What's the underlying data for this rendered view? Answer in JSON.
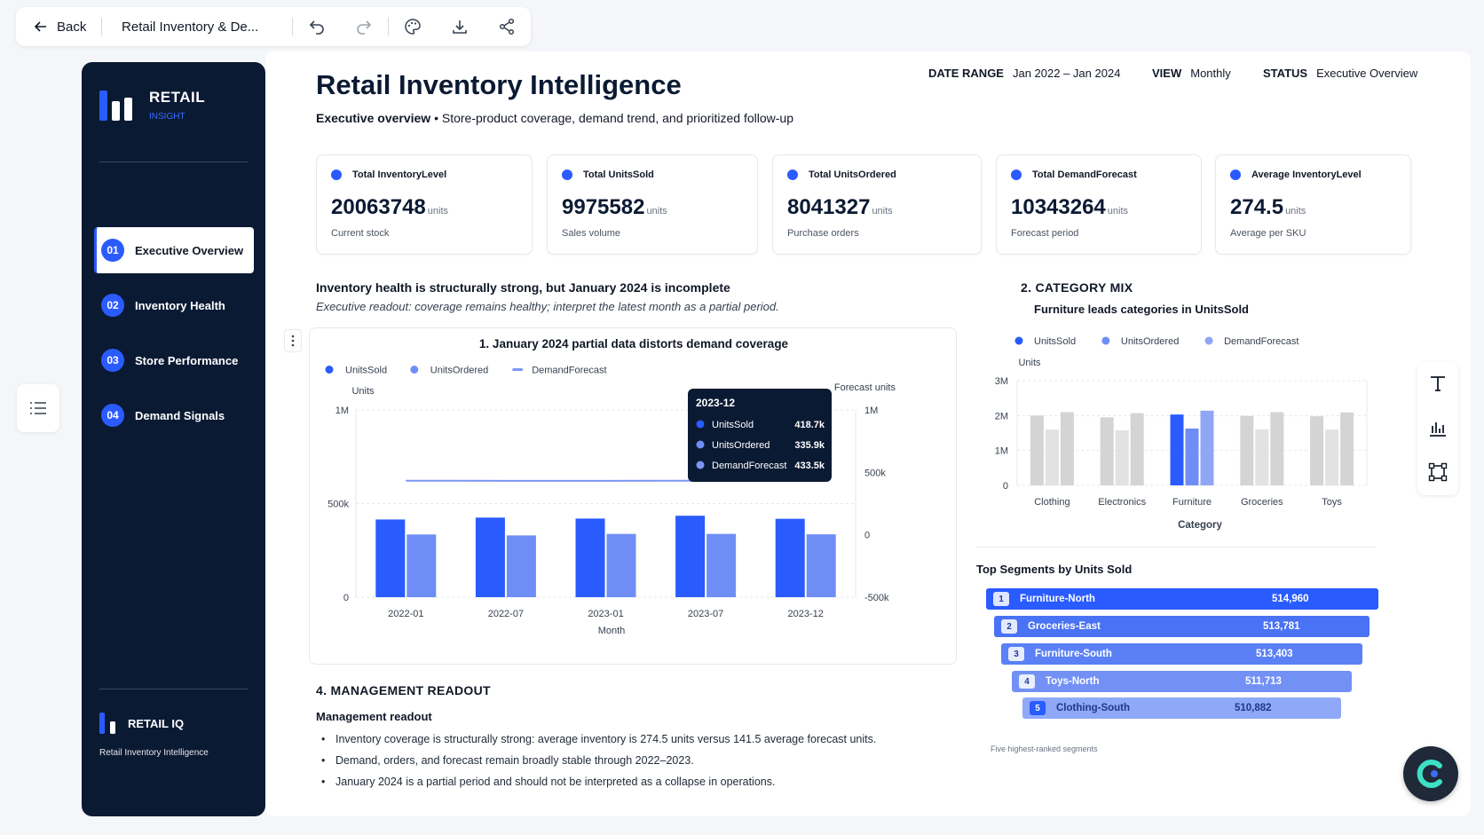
{
  "toolbar": {
    "back_label": "Back",
    "doc_title": "Retail Inventory & De..."
  },
  "sidebar": {
    "logo_title": "RETAIL",
    "logo_sub": "INSIGHT",
    "items": [
      {
        "num": "01",
        "label": "Executive Overview",
        "active": true
      },
      {
        "num": "02",
        "label": "Inventory Health",
        "active": false
      },
      {
        "num": "03",
        "label": "Store Performance",
        "active": false
      },
      {
        "num": "04",
        "label": "Demand Signals",
        "active": false
      }
    ],
    "footer_title": "RETAIL IQ",
    "footer_sub": "Retail Inventory Intelligence"
  },
  "header": {
    "title": "Retail Inventory Intelligence",
    "subtitle_bold": "Executive overview",
    "subtitle_rest": " • Store-product coverage, demand trend, and prioritized follow-up",
    "date_range_label": "DATE RANGE",
    "date_range_value": "Jan 2022 – Jan 2024",
    "view_label": "VIEW",
    "view_value": "Monthly",
    "status_label": "STATUS",
    "status_value": "Executive Overview"
  },
  "kpis": [
    {
      "label": "Total InventoryLevel",
      "value": "20063748",
      "unit": "units",
      "sub": "Current stock"
    },
    {
      "label": "Total UnitsSold",
      "value": "9975582",
      "unit": "units",
      "sub": "Sales volume"
    },
    {
      "label": "Total UnitsOrdered",
      "value": "8041327",
      "unit": "units",
      "sub": "Purchase orders"
    },
    {
      "label": "Total DemandForecast",
      "value": "10343264",
      "unit": "units",
      "sub": "Forecast period"
    },
    {
      "label": "Average InventoryLevel",
      "value": "274.5",
      "unit": "units",
      "sub": "Average per SKU"
    }
  ],
  "section1": {
    "title": "Inventory health is structurally strong, but January 2024 is incomplete",
    "subtitle": "Executive readout: coverage remains healthy; interpret the latest month as a partial period."
  },
  "section4": {
    "title": "4. MANAGEMENT READOUT",
    "subtitle": "Management readout",
    "bullets": [
      "Inventory coverage is structurally strong: average inventory is 274.5 units versus 141.5 average forecast units.",
      "Demand, orders, and forecast remain broadly stable through 2022–2023.",
      "January 2024 is a partial period and should not be interpreted as a collapse in operations."
    ]
  },
  "section2": {
    "title": "2. CATEGORY MIX",
    "subtitle": "Furniture leads categories in UnitsSold"
  },
  "segments": {
    "title": "Top Segments by Units Sold",
    "footnote": "Five highest-ranked segments",
    "items": [
      {
        "rank": "1",
        "name": "Furniture-North",
        "value": "514,960"
      },
      {
        "rank": "2",
        "name": "Groceries-East",
        "value": "513,781"
      },
      {
        "rank": "3",
        "name": "Furniture-South",
        "value": "513,403"
      },
      {
        "rank": "4",
        "name": "Toys-North",
        "value": "511,713"
      },
      {
        "rank": "5",
        "name": "Clothing-South",
        "value": "510,882"
      }
    ]
  },
  "chart_data": [
    {
      "type": "bar",
      "title": "1. January 2024 partial data distorts demand coverage",
      "xlabel": "Month",
      "ylabel": "Units",
      "y2label": "Forecast units",
      "categories": [
        "2022-01",
        "2022-07",
        "2023-01",
        "2023-07",
        "2023-12"
      ],
      "series": [
        {
          "name": "UnitsSold",
          "values": [
            415000,
            425000,
            420000,
            435000,
            418700
          ],
          "color": "#2a5bff",
          "axis": "left"
        },
        {
          "name": "UnitsOrdered",
          "values": [
            335000,
            330000,
            338000,
            338000,
            335900
          ],
          "color": "#6f8ef5",
          "axis": "left"
        },
        {
          "name": "DemandForecast",
          "values": [
            433000,
            432500,
            432000,
            433000,
            433500
          ],
          "color": "#7b96f2",
          "axis": "right",
          "render": "line"
        }
      ],
      "ylim": [
        0,
        1000000
      ],
      "y_ticks": [
        "0",
        "500k",
        "1M"
      ],
      "y2lim": [
        -500000,
        1000000
      ],
      "y2_ticks": [
        "-500k",
        "0",
        "500k",
        "1M"
      ],
      "legend": "top-left",
      "grid": true,
      "tooltip": {
        "title": "2023-12",
        "rows": [
          {
            "name": "UnitsSold",
            "value": "418.7k"
          },
          {
            "name": "UnitsOrdered",
            "value": "335.9k"
          },
          {
            "name": "DemandForecast",
            "value": "433.5k"
          }
        ]
      }
    },
    {
      "type": "bar",
      "xlabel": "Category",
      "ylabel": "Units",
      "categories": [
        "Clothing",
        "Electronics",
        "Furniture",
        "Groceries",
        "Toys"
      ],
      "series": [
        {
          "name": "UnitsSold",
          "values": [
            2000000,
            1950000,
            2030000,
            1990000,
            1980000
          ],
          "color": "#2a5bff"
        },
        {
          "name": "UnitsOrdered",
          "values": [
            1600000,
            1580000,
            1630000,
            1610000,
            1600000
          ],
          "color": "#6f8ef5"
        },
        {
          "name": "DemandForecast",
          "values": [
            2100000,
            2070000,
            2140000,
            2100000,
            2090000
          ],
          "color": "#8fa6f5"
        }
      ],
      "highlight_category": "Furniture",
      "ylim": [
        0,
        3000000
      ],
      "y_ticks": [
        "0",
        "1M",
        "2M",
        "3M"
      ],
      "legend": "top",
      "grid": true
    }
  ]
}
